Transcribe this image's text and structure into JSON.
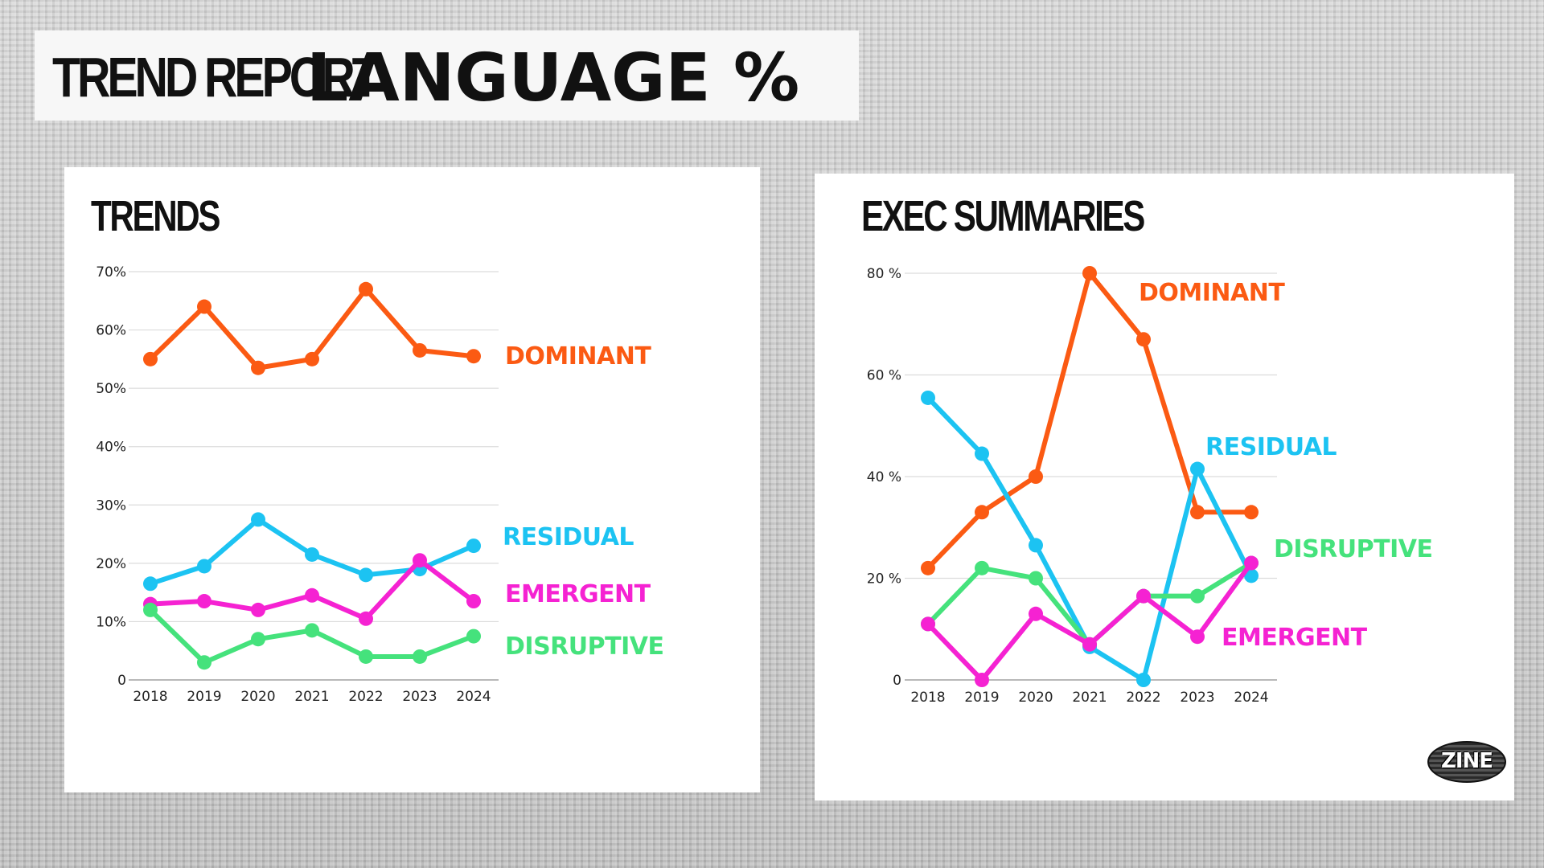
{
  "header": {
    "title_part1": "TREND REPORT",
    "title_part2": "LANGUAGE %"
  },
  "logo": {
    "text": "ZINE"
  },
  "colors": {
    "dominant": "#fb5a13",
    "residual": "#1cc3f2",
    "emergent": "#f522d2",
    "disruptive": "#45e27c",
    "grid": "#dcdcdc",
    "axis": "#b8b8b8"
  },
  "chart_data": [
    {
      "id": "trends",
      "type": "line",
      "title": "TRENDS",
      "categories": [
        "2018",
        "2019",
        "2020",
        "2021",
        "2022",
        "2023",
        "2024"
      ],
      "y_ticks": [
        0,
        10,
        20,
        30,
        40,
        50,
        60,
        70
      ],
      "y_tick_labels": [
        "0",
        "10%",
        "20%",
        "30%",
        "40%",
        "50%",
        "60%",
        "70%"
      ],
      "ylim": [
        0,
        70
      ],
      "grid": true,
      "series": [
        {
          "key": "dominant",
          "name": "DOMINANT",
          "values": [
            55,
            64,
            53.5,
            55,
            67,
            56.5,
            55.5
          ]
        },
        {
          "key": "residual",
          "name": "RESIDUAL",
          "values": [
            16.5,
            19.5,
            27.5,
            21.5,
            18,
            19,
            23
          ]
        },
        {
          "key": "emergent",
          "name": "EMERGENT",
          "values": [
            13,
            13.5,
            12,
            14.5,
            10.5,
            20.5,
            13.5
          ]
        },
        {
          "key": "disruptive",
          "name": "DISRUPTIVE",
          "values": [
            12,
            3,
            7,
            8.5,
            4,
            4,
            7.5
          ]
        }
      ]
    },
    {
      "id": "exec",
      "type": "line",
      "title": "EXEC SUMMARIES",
      "categories": [
        "2018",
        "2019",
        "2020",
        "2021",
        "2022",
        "2023",
        "2024"
      ],
      "y_ticks": [
        0,
        20,
        40,
        60,
        80
      ],
      "y_tick_labels": [
        "0",
        "20 %",
        "40 %",
        "60 %",
        "80 %"
      ],
      "ylim": [
        0,
        80
      ],
      "grid": true,
      "series": [
        {
          "key": "dominant",
          "name": "DOMINANT",
          "values": [
            22,
            33,
            40,
            80,
            67,
            33,
            33
          ]
        },
        {
          "key": "residual",
          "name": "RESIDUAL",
          "values": [
            55.5,
            44.5,
            26.5,
            6.5,
            0,
            41.5,
            20.5
          ]
        },
        {
          "key": "disruptive",
          "name": "DISRUPTIVE",
          "values": [
            11,
            22,
            20,
            7,
            16.5,
            16.5,
            23
          ]
        },
        {
          "key": "emergent",
          "name": "EMERGENT",
          "values": [
            11,
            0,
            13,
            7,
            16.5,
            8.5,
            23
          ]
        }
      ]
    }
  ]
}
